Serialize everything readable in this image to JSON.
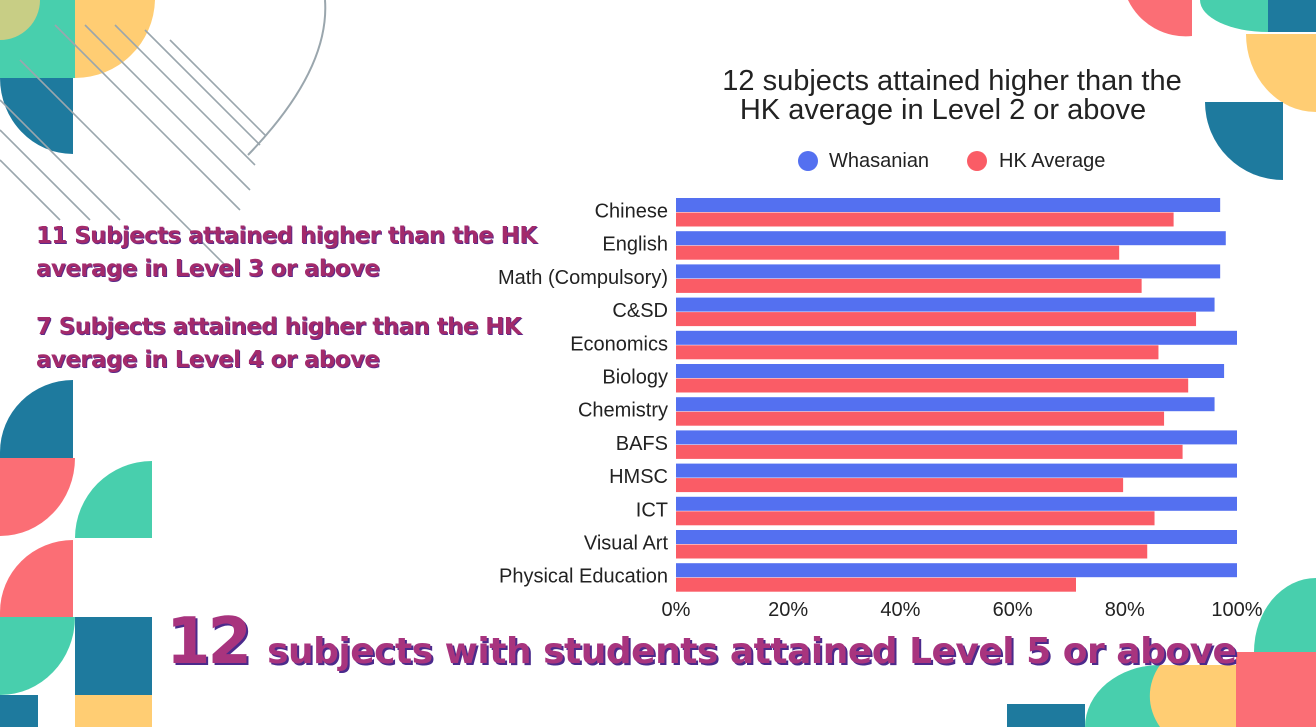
{
  "notes": {
    "level3": "11 Subjects attained higher than the HK average in Level 3 or above",
    "level4": "7 Subjects attained higher than the HK average in Level 4 or above"
  },
  "headline": {
    "number": "12",
    "text": "subjects with students attained Level 5 or above"
  },
  "colors": {
    "whasanian": "#5470f0",
    "hk_average": "#fa5c66",
    "note_text": "#a32a6b",
    "deco_green": "#48cfad",
    "deco_yellow": "#ffcd73",
    "deco_blue": "#1e7a9e",
    "deco_red": "#fb6e75"
  },
  "chart_data": {
    "type": "bar",
    "orientation": "horizontal",
    "title_lines": [
      "12 subjects attained higher than the",
      "HK average in Level 2 or above"
    ],
    "categories": [
      "Chinese",
      "English",
      "Math (Compulsory)",
      "C&SD",
      "Economics",
      "Biology",
      "Chemistry",
      "BAFS",
      "HMSC",
      "ICT",
      "Visual Art",
      "Physical Education"
    ],
    "series": [
      {
        "name": "Whasanian",
        "color": "#5470f0",
        "values": [
          0.97,
          0.98,
          0.97,
          0.96,
          1.0,
          0.977,
          0.96,
          1.0,
          1.0,
          1.0,
          1.0,
          1.0
        ]
      },
      {
        "name": "HK Average",
        "color": "#fa5c66",
        "values": [
          0.887,
          0.79,
          0.83,
          0.927,
          0.86,
          0.913,
          0.87,
          0.903,
          0.797,
          0.853,
          0.84,
          0.713
        ]
      }
    ],
    "x_ticks": [
      "0%",
      "20%",
      "40%",
      "60%",
      "80%",
      "100%"
    ],
    "xlim": [
      0,
      1
    ],
    "legend_position": "top",
    "grid": false
  }
}
